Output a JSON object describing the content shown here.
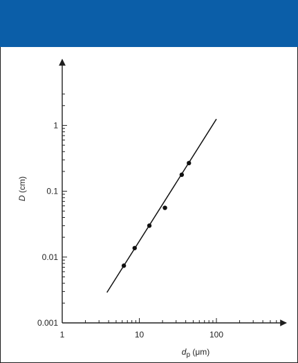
{
  "colors": {
    "header_bar": "#0b5ea8",
    "axis": "#1f1f1f",
    "line": "#111111",
    "points": "#111111",
    "text": "#222222"
  },
  "chart_data": {
    "type": "scatter",
    "x_scale": "log",
    "y_scale": "log",
    "xlim": [
      1,
      600
    ],
    "ylim": [
      0.001,
      3
    ],
    "x_ticks": [
      1,
      10,
      100
    ],
    "x_tick_labels": [
      "1",
      "10",
      "100"
    ],
    "y_ticks": [
      0.001,
      0.01,
      0.1,
      1
    ],
    "y_tick_labels": [
      "0.001",
      "0.01",
      "0.1",
      "1"
    ],
    "xlabel": {
      "main": "d",
      "sub": "p",
      "unit": " (μm)"
    },
    "ylabel": {
      "main": "D",
      "unit": " (cm)"
    },
    "grid": false,
    "series": [
      {
        "type": "scatter",
        "x": [
          6.3,
          8.7,
          13.5,
          21.5,
          35.5,
          44
        ],
        "y": [
          0.0074,
          0.0137,
          0.03,
          0.056,
          0.178,
          0.268
        ]
      },
      {
        "type": "line",
        "x": [
          3.8,
          100
        ],
        "y": [
          0.0029,
          1.25
        ]
      }
    ]
  }
}
